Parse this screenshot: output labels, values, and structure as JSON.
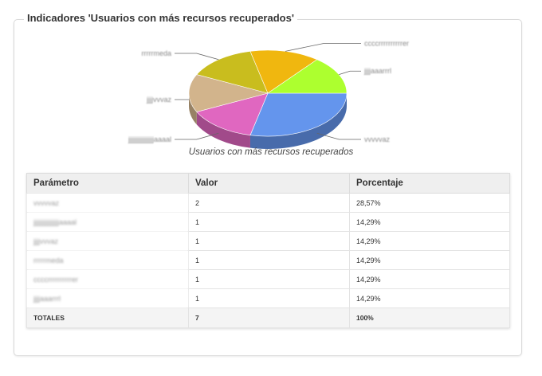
{
  "panel": {
    "title": "Indicadores 'Usuarios  con más recursos recuperados'"
  },
  "chart_data": {
    "type": "pie",
    "title": "Usuarios con más recursos recuperados",
    "slices": [
      {
        "label": "vvvvvaz",
        "value": 2,
        "color": "#6495ed"
      },
      {
        "label": "jjjjjjjjjjjjjjjjaaaal",
        "value": 1,
        "color": "#e067c0"
      },
      {
        "label": "jjjjvvvaz",
        "value": 1,
        "color": "#d2b48c"
      },
      {
        "label": "rrrrrmeda",
        "value": 1,
        "color": "#c9bd1e"
      },
      {
        "label": "ccccrrrrrrrrrrer",
        "value": 1,
        "color": "#f0b70f"
      },
      {
        "label": "jjjjaaarrrl",
        "value": 1,
        "color": "#adff2f"
      }
    ]
  },
  "table": {
    "headers": [
      "Parámetro",
      "Valor",
      "Porcentaje"
    ],
    "rows": [
      {
        "param": "vvvvvaz",
        "valor": "2",
        "pct": "28,57%"
      },
      {
        "param": "jjjjjjjjjjjjjjjjaaaal",
        "valor": "1",
        "pct": "14,29%"
      },
      {
        "param": "jjjjvvvaz",
        "valor": "1",
        "pct": "14,29%"
      },
      {
        "param": "rrrrrmeda",
        "valor": "1",
        "pct": "14,29%"
      },
      {
        "param": "ccccrrrrrrrrrrer",
        "valor": "1",
        "pct": "14,29%"
      },
      {
        "param": "jjjjaaarrrl",
        "valor": "1",
        "pct": "14,29%"
      }
    ],
    "totals": {
      "label": "TOTALES",
      "valor": "7",
      "pct": "100%"
    }
  }
}
